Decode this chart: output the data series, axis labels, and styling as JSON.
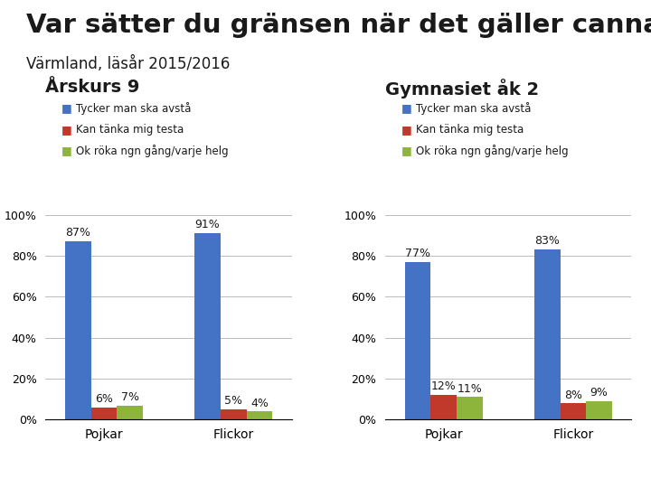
{
  "title": "Var sätter du gränsen när det gäller cannabis?",
  "subtitle": "Värmland, läsår 2015/2016",
  "background_color": "#ffffff",
  "bottom_bar_color": "#2070b4",
  "chart1_title": "Årskurs 9",
  "chart2_title": "Gymnasiet åk 2",
  "legend_labels": [
    "Tycker man ska avstå",
    "Kan tänka mig testa",
    "Ok röka ngn gång/varje helg"
  ],
  "legend_colors": [
    "#4472c4",
    "#c0392b",
    "#8db53c"
  ],
  "categories": [
    "Pojkar",
    "Flickor"
  ],
  "chart1_data": {
    "Pojkar": [
      87,
      6,
      7
    ],
    "Flickor": [
      91,
      5,
      4
    ]
  },
  "chart2_data": {
    "Pojkar": [
      77,
      12,
      11
    ],
    "Flickor": [
      83,
      8,
      9
    ]
  },
  "bar_colors": [
    "#4472c4",
    "#c0392b",
    "#8db53c"
  ],
  "ylim": [
    0,
    100
  ],
  "yticks": [
    0,
    20,
    40,
    60,
    80,
    100
  ],
  "ytick_labels": [
    "0%",
    "20%",
    "40%",
    "60%",
    "80%",
    "100%"
  ],
  "title_fontsize": 21,
  "subtitle_fontsize": 12,
  "chart_title_fontsize": 14,
  "tick_fontsize": 9,
  "bar_width": 0.2,
  "bar_label_fontsize": 9
}
